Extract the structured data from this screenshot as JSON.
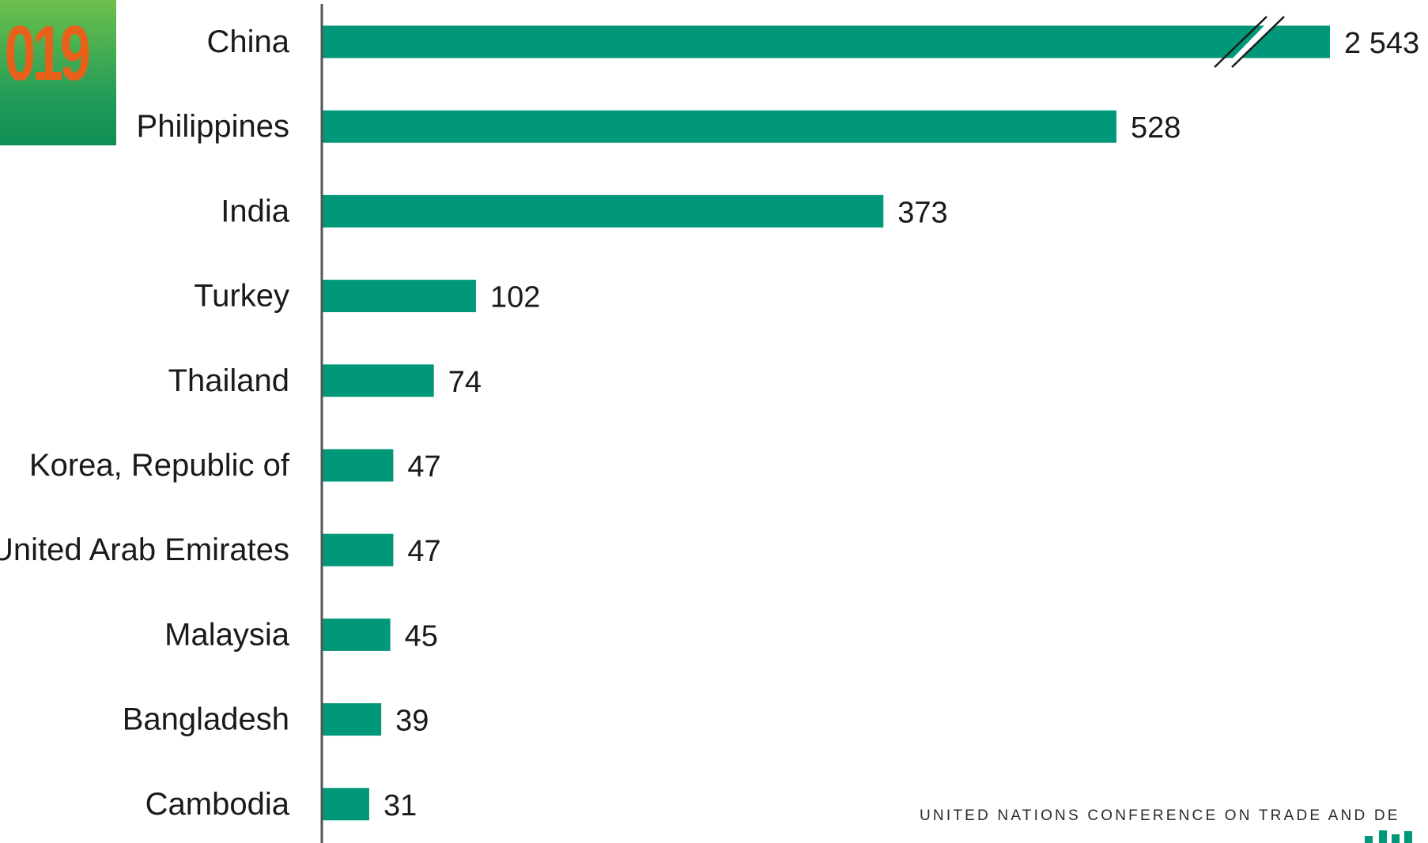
{
  "badge": {
    "text": "019"
  },
  "footer": {
    "text": "UNITED NATIONS CONFERENCE ON TRADE AND DE"
  },
  "colors": {
    "bar": "#009878",
    "axis": "#555555",
    "badge_text": "#e8611a",
    "logo": "#009878"
  },
  "chart_data": {
    "type": "bar",
    "orientation": "horizontal",
    "categories": [
      "China",
      "Philippines",
      "India",
      "Turkey",
      "Thailand",
      "Korea, Republic of",
      "United Arab Emirates",
      "Malaysia",
      "Bangladesh",
      "Cambodia"
    ],
    "values": [
      2543,
      528,
      373,
      102,
      74,
      47,
      47,
      45,
      39,
      31
    ],
    "value_labels": [
      "2 543",
      "528",
      "373",
      "102",
      "74",
      "47",
      "47",
      "45",
      "39",
      "31"
    ],
    "axis_break": {
      "category": "China",
      "shown_as": 670
    },
    "xlim": [
      0,
      670
    ],
    "grid": false,
    "title": "",
    "xlabel": "",
    "ylabel": ""
  }
}
